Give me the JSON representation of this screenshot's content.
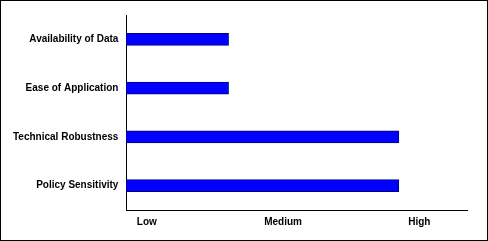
{
  "chart_data": {
    "type": "bar",
    "orientation": "horizontal",
    "categories": [
      "Availability of Data",
      "Ease of Application",
      "Technical Robustness",
      "Policy Sensitivity"
    ],
    "values": [
      1.6,
      1.6,
      2.85,
      2.85
    ],
    "color": "#0000ff",
    "xlim": [
      0.85,
      3.35
    ],
    "xticks": [
      {
        "value": 1,
        "label": "Low"
      },
      {
        "value": 2,
        "label": "Medium"
      },
      {
        "value": 3,
        "label": "High"
      }
    ],
    "grid": false
  }
}
